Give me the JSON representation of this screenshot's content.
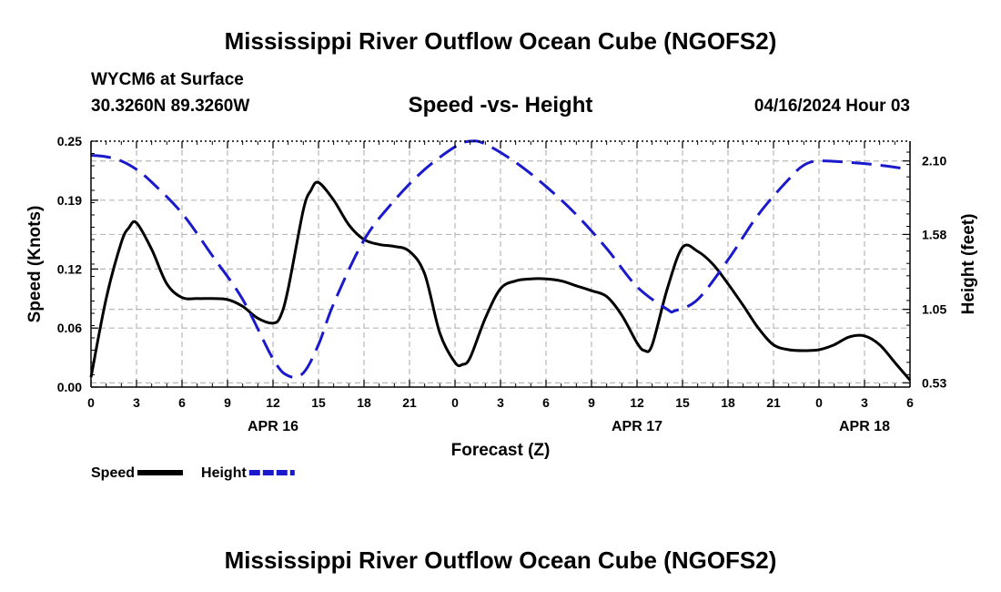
{
  "header": {
    "title": "Mississippi River Outflow Ocean Cube (NGOFS2)",
    "station": "WYCM6 at Surface",
    "coords": "30.3260N  89.3260W",
    "datetime": "04/16/2024 Hour 03",
    "footer_title": "Mississippi River Outflow Ocean Cube (NGOFS2)"
  },
  "chart_data": {
    "type": "line",
    "title": "Speed -vs- Height",
    "xlabel": "Forecast (Z)",
    "ylabel": "Speed (Knots)",
    "y2label": "Height (feet)",
    "x_unit": "hours from 04/16 00Z",
    "xlim": [
      0,
      54
    ],
    "ylim": [
      0,
      0.25
    ],
    "y2lim": [
      0.5,
      2.24
    ],
    "x_ticks": [
      0,
      3,
      6,
      9,
      12,
      15,
      18,
      21,
      24,
      27,
      30,
      33,
      36,
      39,
      42,
      45,
      48,
      51,
      54
    ],
    "x_tick_labels": [
      "0",
      "3",
      "6",
      "9",
      "12",
      "15",
      "18",
      "21",
      "0",
      "3",
      "6",
      "9",
      "12",
      "15",
      "18",
      "21",
      "0",
      "3",
      "6"
    ],
    "y_ticks": [
      0.0,
      0.06,
      0.12,
      0.19,
      0.25
    ],
    "y_tick_labels": [
      "0.00",
      "0.06",
      "0.12",
      "0.19",
      "0.25"
    ],
    "y2_ticks": [
      0.53,
      1.05,
      1.58,
      2.1
    ],
    "y2_tick_labels": [
      "0.53",
      "1.05",
      "1.58",
      "2.10"
    ],
    "day_labels": [
      {
        "x": 12,
        "label": "APR 16"
      },
      {
        "x": 36,
        "label": "APR 17"
      },
      {
        "x": 51,
        "label": "APR 18"
      }
    ],
    "grid": true,
    "legend": [
      {
        "name": "Speed",
        "color": "#000000",
        "style": "solid"
      },
      {
        "name": "Height",
        "color": "#1a1acc",
        "style": "dashed"
      }
    ],
    "series": [
      {
        "name": "Speed",
        "axis": "left",
        "color": "#000000",
        "x": [
          0,
          1,
          2,
          2.5,
          3,
          4,
          5,
          6,
          7,
          8,
          9,
          10,
          11,
          12,
          12.5,
          13,
          14,
          14.5,
          15,
          16,
          17,
          18,
          19,
          20,
          21,
          22,
          23,
          24,
          24.5,
          25,
          26,
          27,
          28,
          29,
          30,
          31,
          32,
          33,
          34,
          35,
          36,
          36.5,
          37,
          38,
          39,
          40,
          41,
          42,
          43,
          44,
          45,
          46,
          47,
          48,
          49,
          50,
          51,
          52,
          53,
          54
        ],
        "values": [
          0.01,
          0.09,
          0.147,
          0.162,
          0.167,
          0.14,
          0.105,
          0.091,
          0.09,
          0.09,
          0.089,
          0.082,
          0.07,
          0.065,
          0.072,
          0.1,
          0.18,
          0.2,
          0.208,
          0.19,
          0.165,
          0.15,
          0.145,
          0.143,
          0.138,
          0.115,
          0.055,
          0.025,
          0.023,
          0.03,
          0.07,
          0.1,
          0.108,
          0.11,
          0.11,
          0.108,
          0.103,
          0.098,
          0.092,
          0.073,
          0.045,
          0.037,
          0.043,
          0.1,
          0.142,
          0.138,
          0.125,
          0.105,
          0.083,
          0.06,
          0.043,
          0.038,
          0.037,
          0.038,
          0.043,
          0.051,
          0.052,
          0.043,
          0.025,
          0.007
        ]
      },
      {
        "name": "Height",
        "axis": "right",
        "color": "#1a1acc",
        "x": [
          0,
          1,
          2,
          3,
          4,
          6,
          8,
          10,
          12,
          13,
          14,
          15,
          16,
          18,
          20,
          22,
          24,
          25,
          26,
          28,
          30,
          32,
          34,
          36,
          38,
          38.5,
          40,
          42,
          44,
          46,
          47,
          48,
          50,
          52,
          54
        ],
        "values": [
          2.14,
          2.13,
          2.1,
          2.04,
          1.95,
          1.73,
          1.43,
          1.12,
          0.7,
          0.58,
          0.6,
          0.8,
          1.09,
          1.54,
          1.82,
          2.04,
          2.2,
          2.24,
          2.22,
          2.09,
          1.92,
          1.72,
          1.48,
          1.21,
          1.05,
          1.04,
          1.12,
          1.4,
          1.72,
          1.97,
          2.07,
          2.1,
          2.09,
          2.07,
          2.04
        ]
      }
    ]
  }
}
